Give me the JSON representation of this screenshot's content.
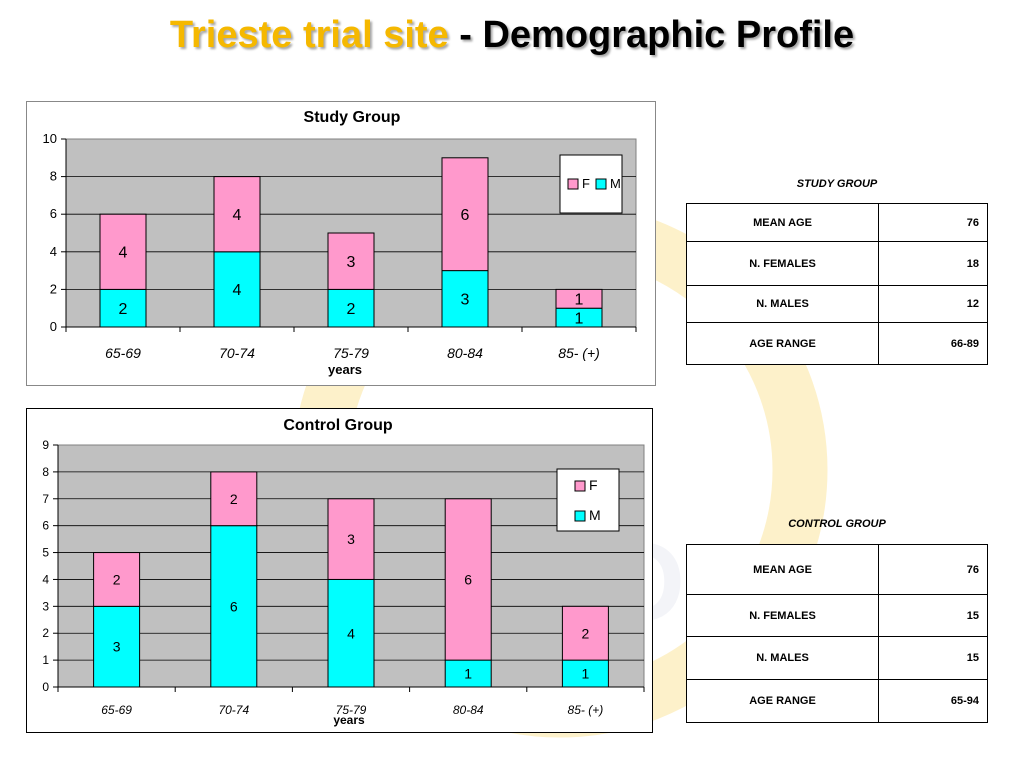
{
  "title": {
    "part1": "Trieste trial site",
    "sep": " - ",
    "part2": "Demographic  Profile"
  },
  "colors": {
    "female": "#ff99cc",
    "male": "#00ffff",
    "plot_bg": "#c0c0c0",
    "title_accent": "#f5b800"
  },
  "study_stats": {
    "caption": "STUDY GROUP",
    "rows": [
      {
        "label": "MEAN AGE",
        "value": "76"
      },
      {
        "label": "N. FEMALES",
        "value": "18"
      },
      {
        "label": "N. MALES",
        "value": "12"
      },
      {
        "label": "AGE RANGE",
        "value": "66-89"
      }
    ]
  },
  "control_stats": {
    "caption": "CONTROL GROUP",
    "rows": [
      {
        "label": "MEAN AGE",
        "value": "76"
      },
      {
        "label": "N. FEMALES",
        "value": "15"
      },
      {
        "label": "N. MALES",
        "value": "15"
      },
      {
        "label": "AGE RANGE",
        "value": "65-94"
      }
    ]
  },
  "chart_data": [
    {
      "type": "bar",
      "stacked": true,
      "title": "Study Group",
      "xlabel": "years",
      "ylabel": "",
      "categories": [
        "65-69",
        "70-74",
        "75-79",
        "80-84",
        "85- (+)"
      ],
      "series": [
        {
          "name": "M",
          "values": [
            2,
            4,
            2,
            3,
            1
          ],
          "color": "#00ffff"
        },
        {
          "name": "F",
          "values": [
            4,
            4,
            3,
            6,
            1
          ],
          "color": "#ff99cc"
        }
      ],
      "ylim": [
        0,
        10
      ],
      "yticks": [
        0,
        2,
        4,
        6,
        8,
        10
      ],
      "legend": "top-right",
      "legend_order": [
        "F",
        "M"
      ],
      "grid": true
    },
    {
      "type": "bar",
      "stacked": true,
      "title": "Control Group",
      "xlabel": "years",
      "ylabel": "",
      "categories": [
        "65-69",
        "70-74",
        "75-79",
        "80-84",
        "85- (+)"
      ],
      "series": [
        {
          "name": "M",
          "values": [
            3,
            6,
            4,
            1,
            1
          ],
          "color": "#00ffff"
        },
        {
          "name": "F",
          "values": [
            2,
            2,
            3,
            6,
            2
          ],
          "color": "#ff99cc"
        }
      ],
      "ylim": [
        0,
        9
      ],
      "yticks": [
        0,
        1,
        2,
        3,
        4,
        5,
        6,
        7,
        8,
        9
      ],
      "legend": "top-right",
      "legend_order": [
        "F",
        "M"
      ],
      "grid": true
    }
  ]
}
